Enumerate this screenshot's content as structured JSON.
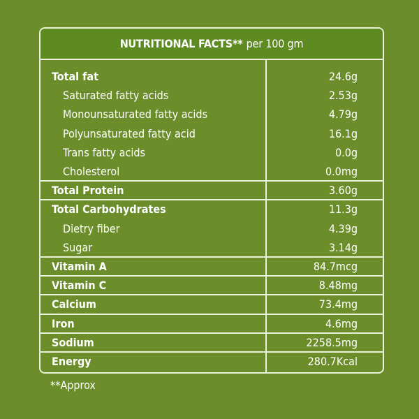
{
  "header": {
    "title_bold": "NUTRITIONAL FACTS**",
    "title_rest": "per 100 gm"
  },
  "rows": [
    {
      "label": "Total fat",
      "value": "24.6g",
      "bold": true,
      "sub": false
    },
    {
      "label": "Saturated fatty acids",
      "value": "2.53g",
      "bold": false,
      "sub": true
    },
    {
      "label": "Monounsaturated fatty acids",
      "value": "4.79g",
      "bold": false,
      "sub": true
    },
    {
      "label": "Polyunsaturated fatty acid",
      "value": "16.1g",
      "bold": false,
      "sub": true
    },
    {
      "label": "Trans fatty acids",
      "value": "0.0g",
      "bold": false,
      "sub": true
    },
    {
      "label": "Cholesterol",
      "value": "0.0mg",
      "bold": false,
      "sub": true
    },
    {
      "label": "Total Protein",
      "value": "3.60g",
      "bold": true,
      "sub": false
    },
    {
      "label": "Total Carbohydrates",
      "value": "11.3g",
      "bold": true,
      "sub": false
    },
    {
      "label": "Dietry fiber",
      "value": "4.39g",
      "bold": false,
      "sub": true
    },
    {
      "label": "Sugar",
      "value": "3.14g",
      "bold": false,
      "sub": true
    },
    {
      "label": "Vitamin A",
      "value": "84.7mcg",
      "bold": true,
      "sub": false
    },
    {
      "label": "Vitamin C",
      "value": "8.48mg",
      "bold": true,
      "sub": false
    },
    {
      "label": "Calcium",
      "value": "73.4mg",
      "bold": true,
      "sub": false
    },
    {
      "label": "Iron",
      "value": "4.6mg",
      "bold": true,
      "sub": false
    },
    {
      "label": "Sodium",
      "value": "2258.5mg",
      "bold": true,
      "sub": false
    },
    {
      "label": "Energy",
      "value": "280.7Kcal",
      "bold": true,
      "sub": false
    }
  ],
  "footnote": "**Approx",
  "colors": {
    "background": "#6b8e2a",
    "header_background": "#5e8a22",
    "border": "#e9f0dc",
    "text": "#ffffff"
  }
}
